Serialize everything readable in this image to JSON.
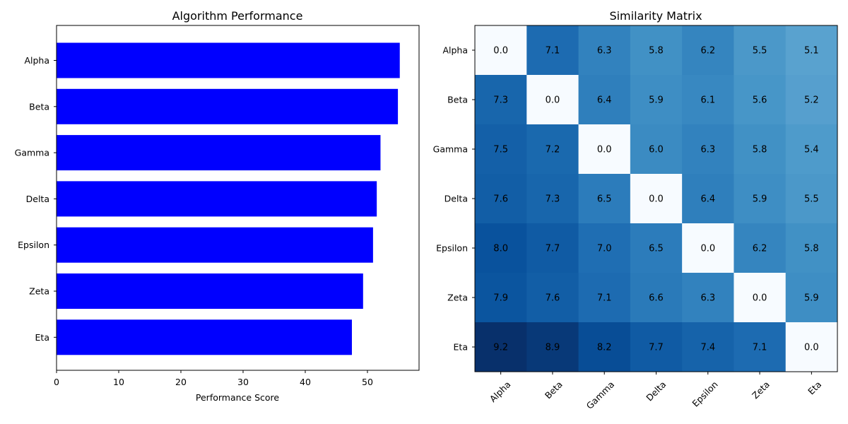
{
  "chart_data": [
    {
      "type": "bar",
      "orientation": "horizontal",
      "title": "Algorithm Performance",
      "xlabel": "Performance Score",
      "ylabel": "",
      "categories": [
        "Alpha",
        "Beta",
        "Gamma",
        "Delta",
        "Epsilon",
        "Zeta",
        "Eta"
      ],
      "values": [
        55.2,
        54.9,
        52.1,
        51.5,
        50.9,
        49.3,
        47.5
      ],
      "xlim": [
        0,
        58.3
      ],
      "xticks": [
        0,
        10,
        20,
        30,
        40,
        50
      ],
      "bar_color": "#0000ff",
      "grid": false
    },
    {
      "type": "heatmap",
      "title": "Similarity Matrix",
      "xlabel": "",
      "ylabel": "",
      "rows": [
        "Alpha",
        "Beta",
        "Gamma",
        "Delta",
        "Epsilon",
        "Zeta",
        "Eta"
      ],
      "columns": [
        "Alpha",
        "Beta",
        "Gamma",
        "Delta",
        "Epsilon",
        "Zeta",
        "Eta"
      ],
      "values": [
        [
          0.0,
          7.1,
          6.3,
          5.8,
          6.2,
          5.5,
          5.1
        ],
        [
          7.3,
          0.0,
          6.4,
          5.9,
          6.1,
          5.6,
          5.2
        ],
        [
          7.5,
          7.2,
          0.0,
          6.0,
          6.3,
          5.8,
          5.4
        ],
        [
          7.6,
          7.3,
          6.5,
          0.0,
          6.4,
          5.9,
          5.5
        ],
        [
          8.0,
          7.7,
          7.0,
          6.5,
          0.0,
          6.2,
          5.8
        ],
        [
          7.9,
          7.6,
          7.1,
          6.6,
          6.3,
          0.0,
          5.9
        ],
        [
          9.2,
          8.9,
          8.2,
          7.7,
          7.4,
          7.1,
          0.0
        ]
      ],
      "colormap": "Blues",
      "value_range": [
        0.0,
        9.2
      ],
      "xtick_rotation": 45,
      "grid": false
    }
  ]
}
